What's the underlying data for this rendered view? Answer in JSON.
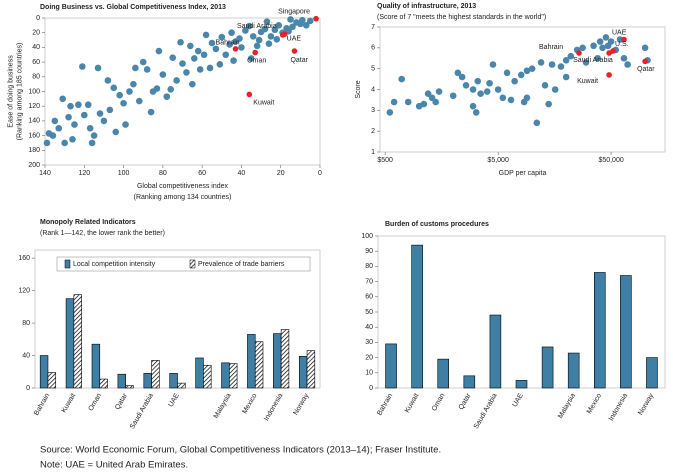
{
  "chart_data": [
    {
      "type": "scatter",
      "title": "Doing Business vs. Global Competitiveness Index, 2013",
      "xlabel": [
        "Global competitiveness index",
        "(Ranking among 134 countries)"
      ],
      "ylabel": [
        "Ease of doing business",
        "(Ranking among 185 countries)"
      ],
      "xlim": [
        0,
        140
      ],
      "x_inverted": true,
      "xticks": [
        140,
        120,
        100,
        80,
        60,
        40,
        20,
        0
      ],
      "ylim": [
        0,
        200
      ],
      "y_inverted": true,
      "yticks": [
        0,
        20,
        40,
        60,
        80,
        100,
        120,
        140,
        160,
        180,
        200
      ],
      "series": [
        {
          "color": "#4a86ab",
          "x": [
            5,
            7,
            9,
            10,
            12,
            14,
            15,
            16,
            17,
            19,
            21,
            22,
            23,
            25,
            26,
            27,
            28,
            30,
            31,
            32,
            34,
            35,
            36,
            38,
            40,
            41,
            43,
            44,
            45,
            46,
            48,
            50,
            51,
            53,
            55,
            56,
            58,
            59,
            61,
            62,
            64,
            65,
            66,
            68,
            70,
            71,
            73,
            75,
            76,
            78,
            80,
            82,
            83,
            85,
            86,
            88,
            90,
            92,
            94,
            95,
            97,
            99,
            100,
            102,
            104,
            105,
            107,
            108,
            110,
            112,
            113,
            115,
            116,
            117,
            118,
            120,
            121,
            123,
            125,
            127,
            128,
            130,
            131,
            133,
            135,
            136,
            138,
            139,
            126
          ],
          "y": [
            4,
            10,
            3,
            8,
            6,
            12,
            2,
            18,
            14,
            20,
            10,
            29,
            16,
            25,
            35,
            5,
            15,
            19,
            30,
            38,
            25,
            55,
            11,
            17,
            40,
            28,
            32,
            58,
            20,
            36,
            50,
            26,
            63,
            42,
            34,
            68,
            23,
            50,
            70,
            45,
            55,
            90,
            38,
            74,
            62,
            33,
            85,
            54,
            97,
            107,
            77,
            45,
            96,
            100,
            128,
            70,
            60,
            113,
            68,
            90,
            100,
            145,
            116,
            105,
            155,
            95,
            125,
            85,
            140,
            130,
            68,
            160,
            170,
            150,
            118,
            132,
            66,
            118,
            145,
            120,
            135,
            170,
            110,
            150,
            140,
            160,
            157,
            170,
            165
          ]
        },
        {
          "color": "#e8202a",
          "labels": [
            "Singapore",
            "UAE",
            "Saudi Arabia",
            "Oman",
            "Bahrain",
            "Qatar",
            "Kuwait"
          ],
          "x": [
            2,
            19,
            18,
            33,
            43,
            13,
            36
          ],
          "y": [
            1,
            23,
            22,
            47,
            42,
            45,
            104
          ]
        }
      ]
    },
    {
      "type": "scatter",
      "title": "Quality of infrastructure, 2013",
      "subtitle": "(Score of 7 \"meets the highest standards in the world\")",
      "xlabel": [
        "GDP per capita"
      ],
      "ylabel": [
        "Score"
      ],
      "xlim": [
        450,
        150000
      ],
      "x_log": true,
      "xticks": [
        {
          "value": 500,
          "label": "$500"
        },
        {
          "value": 5000,
          "label": "$5,000"
        },
        {
          "value": 50000,
          "label": "$50,000"
        }
      ],
      "ylim": [
        1,
        7
      ],
      "yticks": [
        1,
        2,
        3,
        4,
        5,
        6,
        7
      ],
      "series": [
        {
          "color": "#4a86ab",
          "x": [
            550,
            600,
            700,
            800,
            1000,
            1100,
            1200,
            1300,
            1400,
            1500,
            2000,
            2200,
            2400,
            2600,
            3000,
            3200,
            3300,
            3500,
            4000,
            4200,
            4500,
            5000,
            5500,
            6000,
            6500,
            7000,
            8000,
            8500,
            9000,
            10000,
            11000,
            12000,
            13000,
            14000,
            15000,
            16000,
            18000,
            20000,
            22000,
            25000,
            28000,
            30000,
            35000,
            38000,
            40000,
            42000,
            45000,
            47000,
            50000,
            55000,
            60000,
            65000,
            70000,
            100000,
            105000,
            20000,
            9000,
            3000
          ],
          "y": [
            2.9,
            3.4,
            4.5,
            3.4,
            3.2,
            3.3,
            3.8,
            3.6,
            3.4,
            3.9,
            3.7,
            4.8,
            4.6,
            4.2,
            4.0,
            2.9,
            4.4,
            3.8,
            3.9,
            4.3,
            5.2,
            4.0,
            3.6,
            4.8,
            3.5,
            4.4,
            4.7,
            3.4,
            4.9,
            5.0,
            2.4,
            5.3,
            4.2,
            3.3,
            5.2,
            4.0,
            5.1,
            5.4,
            5.6,
            5.9,
            6.0,
            5.3,
            6.1,
            5.5,
            6.3,
            6.0,
            6.5,
            6.1,
            6.3,
            5.9,
            6.4,
            5.5,
            5.2,
            6.0,
            5.4,
            4.6,
            3.6,
            3.2
          ]
        },
        {
          "color": "#e8202a",
          "labels": [
            "UAE",
            "U.S.",
            "Saudi Arabia",
            "Bahrain",
            "Kuwait",
            "Qatar"
          ],
          "x": [
            65000,
            52000,
            48000,
            26000,
            48000,
            100000
          ],
          "y": [
            6.4,
            5.85,
            5.75,
            5.75,
            4.7,
            5.35
          ]
        }
      ]
    },
    {
      "type": "bar",
      "title": "Monopoly Related Indicators",
      "subtitle": "(Rank 1—142, the lower rank the better)",
      "categories": [
        "Bahrain",
        "Kuwait",
        "Oman",
        "Qatar",
        "Saudi Arabia",
        "UAE",
        null,
        "Malaysia",
        "Mexico",
        "Indonesia",
        "Norway"
      ],
      "ylim": [
        0,
        170
      ],
      "yticks": [
        0,
        40,
        80,
        120,
        160
      ],
      "legend": "top",
      "series": [
        {
          "name": "Local competition intensity",
          "color": "#3f7fa6",
          "values": [
            40,
            110,
            54,
            17,
            18,
            18,
            37,
            31,
            66,
            67,
            39
          ]
        },
        {
          "name": "Prevalence of trade barriers",
          "color": "#000000",
          "pattern": "hatch",
          "values": [
            19,
            115,
            11,
            3,
            34,
            6,
            28,
            30,
            57,
            72,
            46
          ]
        }
      ]
    },
    {
      "type": "bar",
      "title": "Burden of customs procedures",
      "categories": [
        "Bahrain",
        "Kuwait",
        "Oman",
        "Qatar",
        "Saudi Arabia",
        "UAE",
        null,
        "Malaysia",
        "Mexico",
        "Indonesia",
        "Norway"
      ],
      "ylim": [
        0,
        100
      ],
      "yticks": [
        0,
        10,
        20,
        30,
        40,
        50,
        60,
        70,
        80,
        90,
        100
      ],
      "series": [
        {
          "color": "#3f7fa6",
          "values": [
            29,
            94,
            19,
            8,
            48,
            5,
            27,
            23,
            76,
            74,
            20
          ]
        }
      ]
    }
  ],
  "footer": {
    "source": "Source: World Economic Forum, Global Competitiveness Indicators (2013–14); Fraser Institute.",
    "note": "Note: UAE = United Arab Emirates."
  }
}
